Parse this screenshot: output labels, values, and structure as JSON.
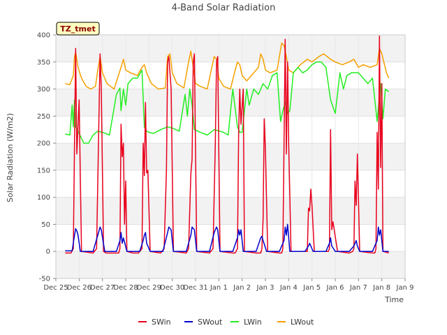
{
  "chart_data": {
    "type": "line",
    "title": "4-Band Solar Radiation",
    "xlabel": "Time",
    "ylabel": "Solar Radiation (W/m2)",
    "badge": "TZ_tmet",
    "xlim": [
      0,
      15
    ],
    "ylim": [
      -50,
      400
    ],
    "x_ticks": [
      {
        "v": 0,
        "label": "Dec 25"
      },
      {
        "v": 1,
        "label": "Dec 26"
      },
      {
        "v": 2,
        "label": "Dec 27"
      },
      {
        "v": 3,
        "label": "Dec 28"
      },
      {
        "v": 4,
        "label": "Dec 29"
      },
      {
        "v": 5,
        "label": "Dec 30"
      },
      {
        "v": 6,
        "label": "Dec 31"
      },
      {
        "v": 7,
        "label": "Jan 1"
      },
      {
        "v": 8,
        "label": "Jan 2"
      },
      {
        "v": 9,
        "label": "Jan 3"
      },
      {
        "v": 10,
        "label": "Jan 4"
      },
      {
        "v": 11,
        "label": "Jan 5"
      },
      {
        "v": 12,
        "label": "Jan 6"
      },
      {
        "v": 13,
        "label": "Jan 7"
      },
      {
        "v": 14,
        "label": "Jan 8"
      },
      {
        "v": 15,
        "label": "Jan 9"
      }
    ],
    "y_ticks": [
      -50,
      0,
      50,
      100,
      150,
      200,
      250,
      300,
      350,
      400
    ],
    "colors": {
      "SWin": "#e8001c",
      "SWout": "#0000cc",
      "LWin": "#22ee22",
      "LWout": "#f5a000",
      "band": "#f2f2f2",
      "badge_bg": "#ffffc0"
    },
    "series": [
      {
        "name": "SWin",
        "color": "#e8001c",
        "x": [
          0.4,
          0.65,
          0.75,
          0.8,
          0.85,
          0.9,
          1.0,
          1.1,
          1.6,
          1.75,
          1.85,
          1.9,
          1.95,
          2.05,
          2.15,
          2.7,
          2.75,
          2.8,
          2.85,
          2.9,
          2.95,
          3.0,
          3.05,
          3.3,
          3.35,
          3.55,
          3.7,
          3.75,
          3.8,
          3.85,
          3.9,
          3.95,
          4.05,
          4.5,
          4.65,
          4.75,
          4.8,
          4.85,
          4.95,
          5.05,
          5.6,
          5.7,
          5.8,
          5.85,
          5.9,
          5.95,
          6.05,
          6.6,
          6.75,
          6.85,
          6.9,
          6.95,
          7.05,
          7.6,
          7.7,
          7.8,
          7.85,
          7.9,
          7.95,
          8.05,
          8.1,
          8.6,
          8.7,
          8.8,
          8.85,
          8.9,
          8.95,
          9.0,
          9.1,
          9.6,
          9.7,
          9.75,
          9.8,
          9.85,
          9.9,
          9.95,
          10.0,
          10.1,
          10.7,
          10.8,
          10.85,
          10.9,
          10.95,
          11.0,
          11.1,
          11.6,
          11.7,
          11.75,
          11.8,
          11.85,
          11.9,
          12.1,
          12.6,
          12.75,
          12.8,
          12.85,
          12.9,
          12.95,
          13.05,
          13.6,
          13.7,
          13.75,
          13.8,
          13.85,
          13.9,
          13.95,
          14.0,
          14.05,
          14.3
        ],
        "y": [
          -3,
          -3,
          5,
          200,
          375,
          180,
          280,
          0,
          -3,
          5,
          250,
          365,
          300,
          0,
          -3,
          -3,
          5,
          235,
          175,
          200,
          50,
          130,
          0,
          -3,
          -3,
          -3,
          5,
          200,
          140,
          275,
          145,
          150,
          0,
          -3,
          5,
          150,
          350,
          360,
          300,
          0,
          -3,
          5,
          145,
          170,
          350,
          365,
          0,
          -3,
          5,
          200,
          350,
          360,
          0,
          -3,
          -3,
          5,
          220,
          300,
          235,
          300,
          0,
          -3,
          -3,
          -3,
          5,
          60,
          245,
          190,
          0,
          -3,
          -3,
          5,
          200,
          392,
          180,
          350,
          200,
          0,
          0,
          0,
          80,
          75,
          115,
          85,
          0,
          0,
          0,
          5,
          225,
          40,
          55,
          0,
          -3,
          0,
          5,
          130,
          85,
          180,
          0,
          -3,
          -3,
          5,
          220,
          115,
          398,
          155,
          310,
          0,
          -3
        ]
      },
      {
        "name": "SWout",
        "color": "#0000cc",
        "x": [
          0.4,
          0.7,
          0.8,
          0.85,
          0.9,
          0.95,
          1.05,
          1.6,
          1.8,
          1.9,
          1.95,
          2.1,
          2.6,
          2.75,
          2.8,
          2.85,
          2.9,
          3.05,
          3.6,
          3.75,
          3.8,
          3.85,
          3.9,
          4.05,
          4.6,
          4.8,
          4.85,
          4.95,
          5.05,
          5.6,
          5.8,
          5.85,
          5.95,
          6.05,
          6.6,
          6.8,
          6.9,
          6.95,
          7.05,
          7.6,
          7.8,
          7.85,
          7.9,
          7.95,
          8.05,
          8.6,
          8.8,
          8.85,
          8.9,
          9.05,
          9.6,
          9.8,
          9.85,
          9.9,
          9.95,
          10.05,
          10.7,
          10.85,
          10.9,
          10.95,
          11.05,
          11.6,
          11.75,
          11.8,
          11.85,
          12.0,
          12.6,
          12.8,
          12.85,
          12.9,
          12.95,
          13.05,
          13.6,
          13.8,
          13.85,
          13.9,
          13.95,
          14.05,
          14.3
        ],
        "y": [
          1,
          1,
          30,
          42,
          38,
          30,
          0,
          0,
          30,
          45,
          40,
          0,
          0,
          20,
          35,
          15,
          25,
          0,
          0,
          20,
          30,
          35,
          15,
          0,
          0,
          35,
          45,
          40,
          0,
          0,
          30,
          45,
          40,
          0,
          0,
          35,
          45,
          40,
          0,
          0,
          25,
          40,
          30,
          40,
          0,
          0,
          25,
          28,
          20,
          0,
          0,
          20,
          45,
          30,
          50,
          0,
          0,
          10,
          15,
          10,
          0,
          0,
          15,
          25,
          10,
          0,
          0,
          10,
          15,
          20,
          10,
          0,
          0,
          20,
          45,
          30,
          40,
          0,
          0
        ]
      },
      {
        "name": "LWin",
        "color": "#22ee22",
        "x": [
          0.4,
          0.6,
          0.7,
          0.75,
          0.8,
          0.85,
          0.95,
          1.2,
          1.4,
          1.6,
          1.8,
          2.0,
          2.3,
          2.6,
          2.75,
          2.8,
          2.9,
          3.0,
          3.1,
          3.3,
          3.5,
          3.7,
          3.8,
          3.9,
          4.0,
          4.2,
          4.5,
          4.8,
          5.0,
          5.3,
          5.55,
          5.65,
          5.75,
          5.85,
          5.95,
          6.2,
          6.5,
          6.8,
          7.2,
          7.4,
          7.6,
          7.8,
          7.9,
          8.0,
          8.2,
          8.3,
          8.5,
          8.7,
          8.9,
          9.1,
          9.3,
          9.5,
          9.65,
          9.75,
          9.85,
          9.95,
          10.05,
          10.2,
          10.4,
          10.6,
          10.8,
          11.0,
          11.2,
          11.4,
          11.6,
          11.8,
          12.0,
          12.2,
          12.35,
          12.5,
          12.7,
          13.0,
          13.2,
          13.4,
          13.6,
          13.8,
          13.95,
          14.05,
          14.15,
          14.3
        ],
        "y": [
          217,
          215,
          270,
          230,
          280,
          230,
          222,
          200,
          200,
          215,
          222,
          220,
          215,
          290,
          302,
          260,
          300,
          270,
          310,
          320,
          320,
          335,
          230,
          222,
          220,
          218,
          225,
          230,
          228,
          222,
          290,
          250,
          300,
          270,
          225,
          220,
          215,
          225,
          220,
          215,
          300,
          230,
          220,
          220,
          300,
          270,
          300,
          290,
          310,
          300,
          325,
          330,
          240,
          260,
          275,
          255,
          260,
          330,
          340,
          330,
          335,
          345,
          350,
          350,
          340,
          280,
          255,
          330,
          300,
          325,
          330,
          330,
          320,
          310,
          320,
          240,
          310,
          245,
          300,
          295
        ]
      },
      {
        "name": "LWout",
        "color": "#f5a000",
        "x": [
          0.4,
          0.6,
          0.75,
          0.8,
          0.85,
          0.95,
          1.1,
          1.3,
          1.5,
          1.7,
          1.8,
          1.9,
          2.0,
          2.2,
          2.5,
          2.8,
          2.9,
          3.0,
          3.2,
          3.5,
          3.7,
          3.8,
          3.9,
          4.1,
          4.4,
          4.7,
          4.8,
          4.9,
          5.0,
          5.2,
          5.5,
          5.7,
          5.8,
          5.9,
          6.0,
          6.2,
          6.5,
          6.7,
          6.8,
          6.9,
          7.0,
          7.2,
          7.5,
          7.7,
          7.8,
          7.9,
          8.0,
          8.2,
          8.5,
          8.7,
          8.8,
          8.9,
          9.0,
          9.2,
          9.5,
          9.7,
          9.8,
          9.9,
          10.0,
          10.2,
          10.5,
          10.8,
          11.0,
          11.3,
          11.5,
          11.8,
          12.0,
          12.3,
          12.6,
          12.8,
          13.0,
          13.2,
          13.5,
          13.8,
          13.9,
          14.0,
          14.2,
          14.3
        ],
        "y": [
          310,
          308,
          325,
          360,
          368,
          340,
          320,
          305,
          300,
          305,
          335,
          360,
          330,
          310,
          300,
          340,
          355,
          335,
          330,
          325,
          340,
          345,
          330,
          310,
          300,
          302,
          360,
          365,
          330,
          310,
          302,
          350,
          370,
          340,
          310,
          305,
          300,
          340,
          360,
          355,
          320,
          305,
          300,
          335,
          350,
          345,
          325,
          315,
          330,
          340,
          365,
          355,
          335,
          330,
          335,
          385,
          380,
          360,
          335,
          330,
          345,
          355,
          350,
          360,
          365,
          355,
          350,
          345,
          350,
          355,
          340,
          345,
          340,
          345,
          375,
          365,
          330,
          320
        ]
      }
    ]
  }
}
